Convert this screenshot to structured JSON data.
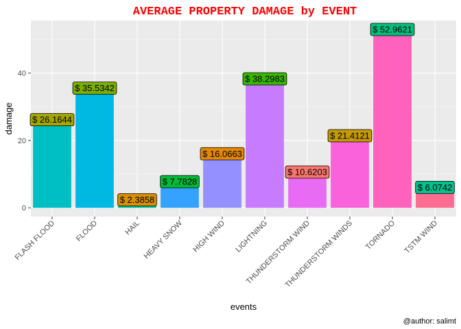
{
  "chart_data": {
    "type": "bar",
    "title": "AVERAGE PROPERTY DAMAGE by EVENT",
    "xlabel": "events",
    "ylabel": "damage",
    "caption": "@author: salimt",
    "ylim": [
      -2.6,
      55.6
    ],
    "yticks": [
      0,
      20,
      40
    ],
    "grid": true,
    "legend": "none",
    "categories": [
      "FLASH FLOOD",
      "FLOOD",
      "HAIL",
      "HEAVY SNOW",
      "HIGH WIND",
      "LIGHTNING",
      "THUNDERSTORM WIND",
      "THUNDERSTORM WINDS",
      "TORNADO",
      "TSTM WIND"
    ],
    "values": [
      26.1644,
      35.5342,
      2.3858,
      7.7828,
      16.0663,
      38.2983,
      10.6203,
      21.4121,
      52.9621,
      6.0742
    ],
    "data_labels": [
      "$ 26.1644",
      "$ 35.5342",
      "$ 2.3858",
      "$ 7.7828",
      "$ 16.0663",
      "$ 38.2983",
      "$ 10.6203",
      "$ 21.4121",
      "$ 52.9621",
      "$ 6.0742"
    ],
    "bar_colors": [
      "#00BFC4",
      "#00B9E3",
      "#00C19A",
      "#35A2FF",
      "#9590FF",
      "#C77CFF",
      "#E76BF3",
      "#FA62DB",
      "#FF62BC",
      "#FF6C91"
    ],
    "label_fill_colors": [
      "#A3A500",
      "#7CAE00",
      "#D89000",
      "#00BA38",
      "#E58700",
      "#39B600",
      "#F8766D",
      "#C49A00",
      "#00BF7D",
      "#00C08B"
    ]
  }
}
